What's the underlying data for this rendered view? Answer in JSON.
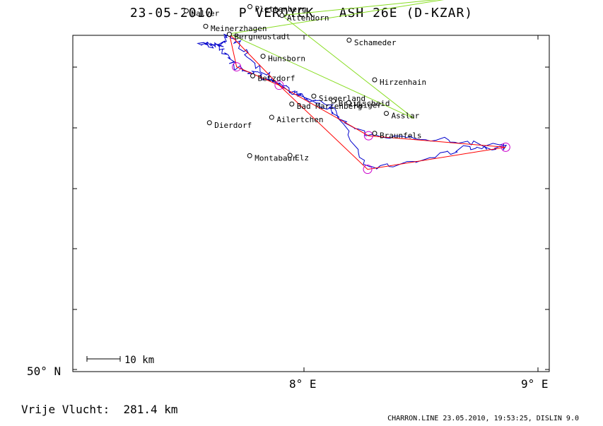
{
  "title": "23-05-2010   P VERDYCK   ASH 26E (D-KZAR)",
  "axes": {
    "lat_label": "50° N",
    "lon_labels": [
      "8° E",
      "9° E"
    ]
  },
  "scale_bar": {
    "label": "10 km"
  },
  "towns": [
    {
      "name": "Halver",
      "lon": 7.497,
      "lat": 51.186
    },
    {
      "name": "Plettenberg",
      "lon": 7.769,
      "lat": 51.2
    },
    {
      "name": "Attendorn",
      "lon": 7.906,
      "lat": 51.171
    },
    {
      "name": "Meinerzhagen",
      "lon": 7.58,
      "lat": 51.135
    },
    {
      "name": "Bergneustadt",
      "lon": 7.681,
      "lat": 51.109
    },
    {
      "name": "Schameder",
      "lon": 8.193,
      "lat": 51.089
    },
    {
      "name": "Hunsborn",
      "lon": 7.825,
      "lat": 51.036
    },
    {
      "name": "Betzdorf",
      "lon": 7.781,
      "lat": 50.971
    },
    {
      "name": "Hirzenhain",
      "lon": 8.302,
      "lat": 50.958
    },
    {
      "name": "Siegerland",
      "lon": 8.042,
      "lat": 50.904
    },
    {
      "name": "Breitscheid",
      "lon": 8.126,
      "lat": 50.888
    },
    {
      "name": "Haiger",
      "lon": 8.191,
      "lat": 50.882
    },
    {
      "name": "Bad Marienberg",
      "lon": 7.948,
      "lat": 50.878
    },
    {
      "name": "Asslar",
      "lon": 8.352,
      "lat": 50.847
    },
    {
      "name": "Ailertchen",
      "lon": 7.862,
      "lat": 50.834
    },
    {
      "name": "Dierdorf",
      "lon": 7.596,
      "lat": 50.816
    },
    {
      "name": "Braunfels",
      "lon": 8.302,
      "lat": 50.781
    },
    {
      "name": "Montabaur",
      "lon": 7.768,
      "lat": 50.707
    },
    {
      "name": "Elz",
      "lon": 7.94,
      "lat": 50.708
    }
  ],
  "turnpoints": [
    {
      "lon": 7.712,
      "lat": 51.001
    },
    {
      "lon": 7.894,
      "lat": 50.94
    },
    {
      "lon": 8.272,
      "lat": 50.662
    },
    {
      "lon": 8.276,
      "lat": 50.773
    },
    {
      "lon": 8.862,
      "lat": 50.735
    }
  ],
  "task_line": [
    [
      7.681,
      51.11
    ],
    [
      7.712,
      51.001
    ],
    [
      7.894,
      50.94
    ],
    [
      8.272,
      50.662
    ],
    [
      8.862,
      50.735
    ],
    [
      8.276,
      50.773
    ],
    [
      7.894,
      50.94
    ],
    [
      7.681,
      51.11
    ]
  ],
  "green_lines": [
    [
      [
        7.681,
        51.11
      ],
      [
        8.653,
        51.23
      ],
      [
        7.906,
        51.171
      ],
      [
        8.47,
        50.83
      ],
      [
        7.681,
        51.11
      ]
    ]
  ],
  "footer": {
    "left_label": "Vrije Vlucht:",
    "distance": "281.4 km",
    "credit": "CHARRON.LINE 23.05.2010, 19:53:25, DISLIN 9.0"
  },
  "colors": {
    "track": "#0000cc",
    "task": "#ff0000",
    "free_line": "#88dd22",
    "turnpoint": "#cc00cc",
    "frame": "#000000"
  }
}
